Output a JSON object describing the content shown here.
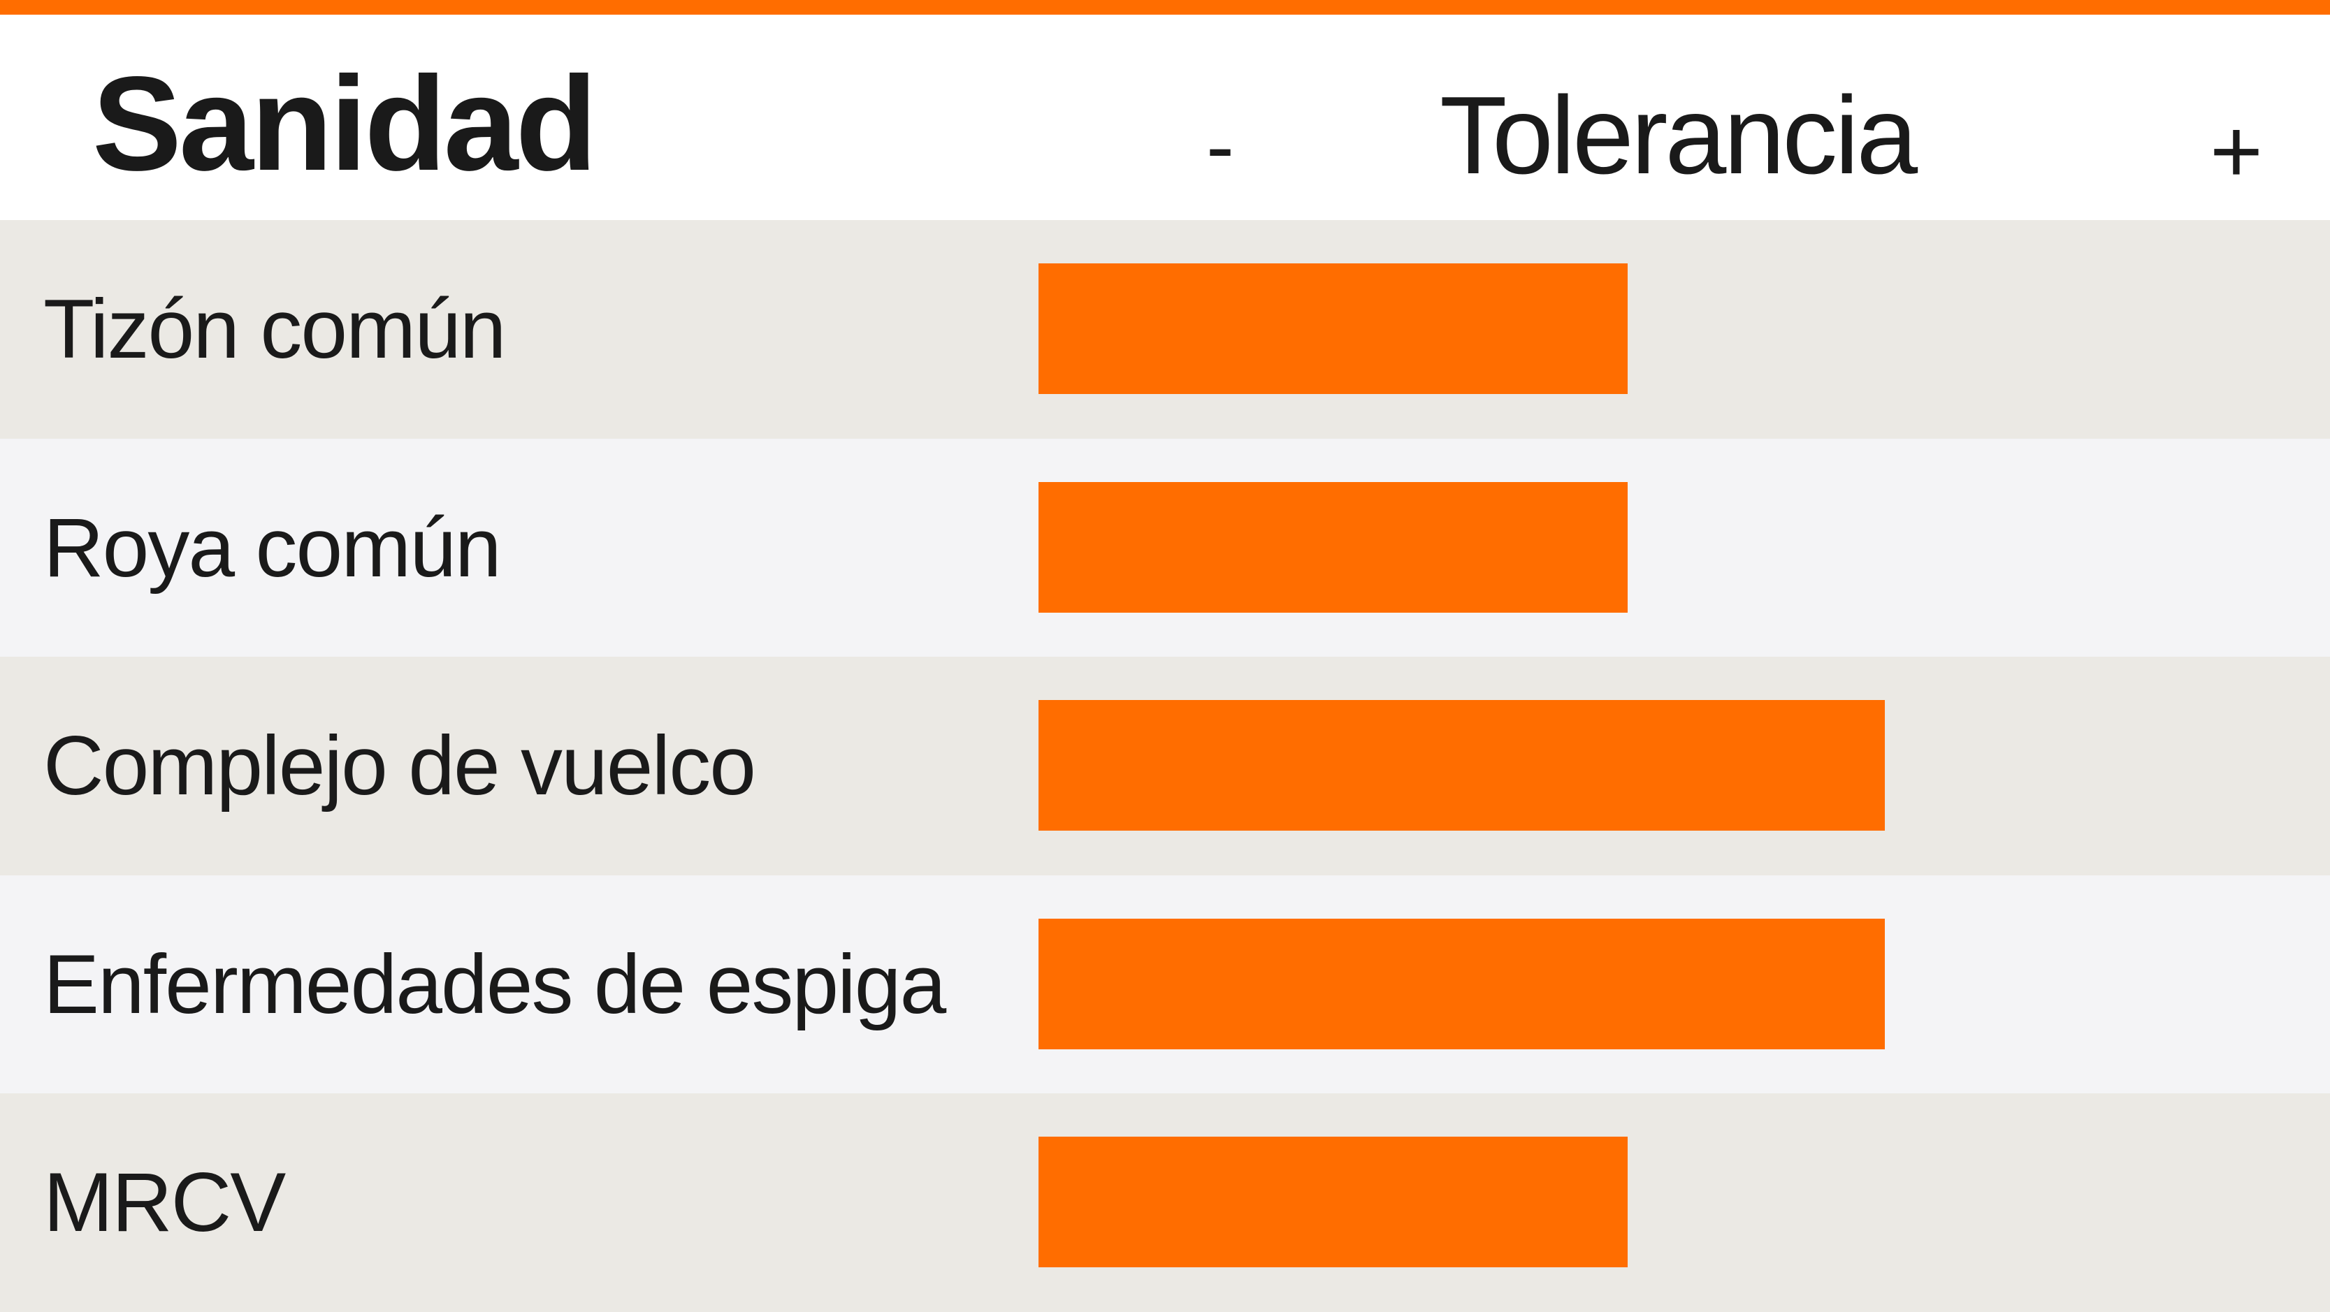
{
  "header": {
    "title": "Sanidad",
    "axis_label": "Tolerancia",
    "axis_min_label": "-",
    "axis_max_label": "+"
  },
  "colors": {
    "accent": "#ff6d00",
    "row_dark": "#ebe9e4",
    "row_light": "#f4f4f6",
    "text": "#1a1a1a"
  },
  "chart_data": {
    "type": "bar",
    "orientation": "horizontal",
    "title": "Sanidad",
    "xlabel": "Tolerancia",
    "categories": [
      "Tizón común",
      "Roya común",
      "Complejo de vuelco",
      "Enfermedades de espiga",
      "MRCV"
    ],
    "values": [
      0.47,
      0.47,
      0.675,
      0.675,
      0.47
    ],
    "xlim": [
      0,
      1
    ],
    "grid": false,
    "legend": "none"
  }
}
